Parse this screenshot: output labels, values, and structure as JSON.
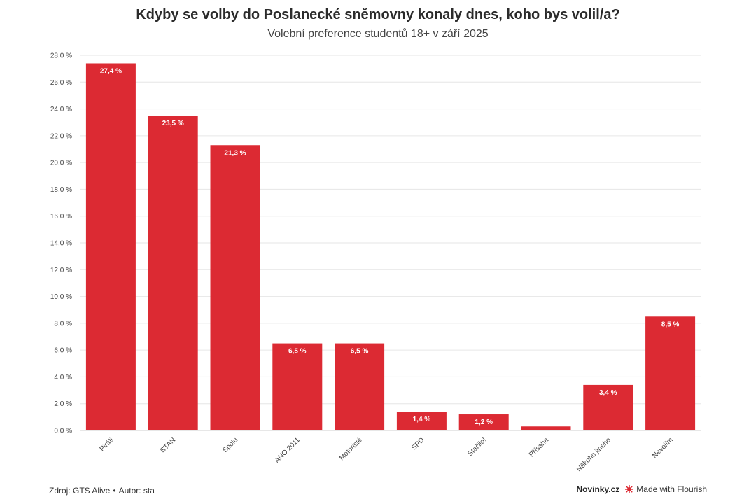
{
  "chart_data": {
    "type": "bar",
    "title": "Kdyby se volby do Poslanecké sněmovny konaly dnes, koho bys volil/a?",
    "subtitle": "Volební preference studentů 18+ v září 2025",
    "categories": [
      "Piráti",
      "STAN",
      "Spolu",
      "ANO 2011",
      "Motoristé",
      "SPD",
      "Stačilo!",
      "Přísaha",
      "Někoho jiného",
      "Nevolím"
    ],
    "values": [
      27.4,
      23.5,
      21.3,
      6.5,
      6.5,
      1.4,
      1.2,
      0.3,
      3.4,
      8.5
    ],
    "data_labels": [
      "27,4 %",
      "23,5 %",
      "21,3 %",
      "6,5 %",
      "6,5 %",
      "1,4 %",
      "1,2 %",
      "",
      "3,4 %",
      "8,5 %"
    ],
    "y_ticks": [
      "0,0 %",
      "2,0 %",
      "4,0 %",
      "6,0 %",
      "8,0 %",
      "10,0 %",
      "12,0 %",
      "14,0 %",
      "16,0 %",
      "18,0 %",
      "20,0 %",
      "22,0 %",
      "24,0 %",
      "26,0 %",
      "28,0 %"
    ],
    "ylim": [
      0,
      28
    ],
    "grid": true,
    "bar_color": "#dc2a33",
    "xlabel": "",
    "ylabel": ""
  },
  "footer": {
    "source": "Zdroj: GTS Alive",
    "separator": "•",
    "author": "Autor: sta",
    "brand": "Novinky.cz",
    "flourish": "Made with Flourish"
  }
}
